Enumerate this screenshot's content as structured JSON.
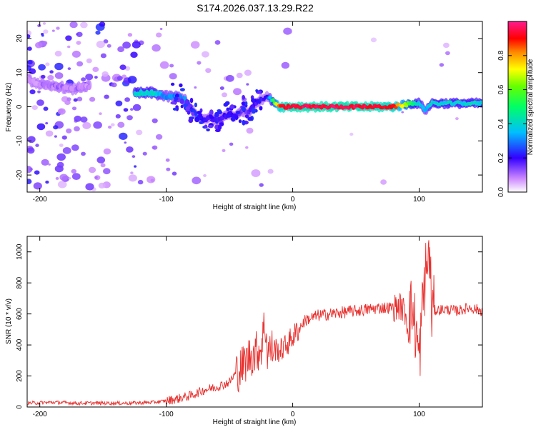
{
  "title": "S174.2026.037.13.29.R22",
  "top_panel": {
    "xlabel": "Height of straight line (km)",
    "ylabel": "Frequency (Hz)",
    "xlim": [
      -210,
      150
    ],
    "ylim": [
      -25,
      25
    ],
    "xticks": [
      -200,
      -100,
      0,
      100
    ],
    "yticks": [
      -20,
      -10,
      0,
      10,
      20
    ],
    "colorbar": {
      "label": "Normalized spectral amplitude",
      "range": [
        0,
        1
      ],
      "ticks": [
        "0.0",
        "0.2",
        "0.4",
        "0.6",
        "0.8"
      ]
    }
  },
  "bottom_panel": {
    "xlabel": "Height of straight line (km)",
    "ylabel": "SNR (10 * v/v)",
    "xlim": [
      -210,
      150
    ],
    "ylim": [
      0,
      1100
    ],
    "xticks": [
      -200,
      -100,
      0,
      100
    ],
    "yticks": [
      0,
      200,
      400,
      600,
      800,
      1000
    ],
    "line_color": "#e8312f"
  },
  "chart_data": [
    {
      "type": "heatmap",
      "title": "S174.2026.037.13.29.R22",
      "xlabel": "Height of straight line (km)",
      "ylabel": "Frequency (Hz)",
      "xlim": [
        -210,
        150
      ],
      "ylim": [
        -25,
        25
      ],
      "colorbar_label": "Normalized spectral amplitude",
      "colorbar_range": [
        0,
        1
      ],
      "ridge": {
        "x": [
          -210,
          -195,
          -185,
          -175,
          -165,
          -160,
          -125,
          -110,
          -100,
          -92,
          -85,
          -80,
          -75,
          -70,
          -65,
          -60,
          -55,
          -50,
          -45,
          -40,
          -35,
          -30,
          -25,
          -20,
          -10,
          0,
          20,
          50,
          80,
          95,
          100,
          105,
          110,
          150
        ],
        "freq": [
          8,
          6,
          6,
          5,
          6,
          6,
          4,
          4,
          3,
          3,
          2,
          -1,
          -3,
          -4,
          -3,
          -4,
          -3,
          -2,
          -3,
          -1,
          -2,
          1,
          2,
          3,
          0,
          0,
          0,
          0,
          0,
          1,
          1,
          -1,
          1,
          1
        ],
        "amplitude": [
          0.05,
          0.1,
          0.1,
          0.1,
          0.1,
          0.05,
          0.4,
          0.4,
          0.3,
          0.3,
          0.3,
          0.25,
          0.25,
          0.2,
          0.2,
          0.2,
          0.2,
          0.2,
          0.2,
          0.15,
          0.15,
          0.2,
          0.2,
          0.2,
          0.9,
          0.95,
          0.95,
          0.95,
          0.9,
          0.5,
          0.4,
          0.3,
          0.4,
          0.4
        ]
      }
    },
    {
      "type": "line",
      "title": "",
      "xlabel": "Height of straight line (km)",
      "ylabel": "SNR (10 * v/v)",
      "xlim": [
        -210,
        150
      ],
      "ylim": [
        0,
        1100
      ],
      "x": [
        -210,
        -190,
        -170,
        -150,
        -130,
        -110,
        -100,
        -90,
        -80,
        -70,
        -60,
        -50,
        -45,
        -40,
        -35,
        -30,
        -25,
        -22,
        -20,
        -15,
        -10,
        -5,
        0,
        10,
        20,
        30,
        40,
        50,
        60,
        70,
        80,
        85,
        90,
        95,
        98,
        100,
        103,
        105,
        108,
        110,
        120,
        130,
        140,
        150
      ],
      "y": [
        25,
        30,
        25,
        25,
        25,
        30,
        40,
        55,
        75,
        110,
        130,
        160,
        220,
        260,
        320,
        350,
        380,
        550,
        360,
        380,
        360,
        400,
        450,
        560,
        590,
        600,
        610,
        620,
        630,
        640,
        640,
        650,
        600,
        620,
        450,
        300,
        700,
        850,
        1000,
        620,
        630,
        620,
        640,
        620
      ]
    }
  ]
}
